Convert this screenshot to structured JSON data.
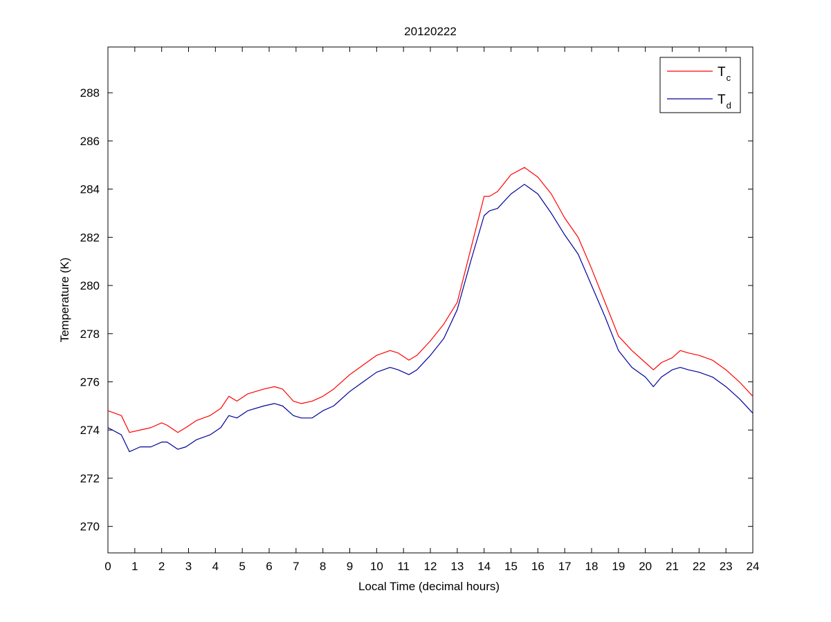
{
  "chart_data": {
    "type": "line",
    "title": "20120222",
    "xlabel": "Local Time (decimal hours)",
    "ylabel": "Temperature (K)",
    "xlim": [
      0,
      24
    ],
    "ylim": [
      268.9,
      289.9
    ],
    "xticks": [
      0,
      1,
      2,
      3,
      4,
      5,
      6,
      7,
      8,
      9,
      10,
      11,
      12,
      13,
      14,
      15,
      16,
      17,
      18,
      19,
      20,
      21,
      22,
      23,
      24
    ],
    "yticks": [
      270,
      272,
      274,
      276,
      278,
      280,
      282,
      284,
      286,
      288
    ],
    "grid": false,
    "legend_position": "top-right",
    "series": [
      {
        "name": "T",
        "subscript": "c",
        "color": "#ff0000",
        "x": [
          0,
          0.5,
          0.8,
          1.2,
          1.6,
          2.0,
          2.2,
          2.6,
          2.9,
          3.3,
          3.8,
          4.2,
          4.5,
          4.8,
          5.2,
          5.8,
          6.2,
          6.5,
          6.9,
          7.2,
          7.6,
          8.0,
          8.4,
          9.0,
          9.5,
          10.0,
          10.5,
          10.8,
          11.2,
          11.5,
          12.0,
          12.5,
          13.0,
          13.5,
          14.0,
          14.2,
          14.5,
          15.0,
          15.5,
          16.0,
          16.5,
          17.0,
          17.5,
          18.0,
          18.5,
          19.0,
          19.5,
          20.0,
          20.3,
          20.6,
          21.0,
          21.3,
          21.6,
          22.0,
          22.5,
          23.0,
          23.5,
          24.0
        ],
        "y": [
          274.8,
          274.6,
          273.9,
          274.0,
          274.1,
          274.3,
          274.2,
          273.9,
          274.1,
          274.4,
          274.6,
          274.9,
          275.4,
          275.2,
          275.5,
          275.7,
          275.8,
          275.7,
          275.2,
          275.1,
          275.2,
          275.4,
          275.7,
          276.3,
          276.7,
          277.1,
          277.3,
          277.2,
          276.9,
          277.1,
          277.7,
          278.4,
          279.3,
          281.5,
          283.7,
          283.7,
          283.9,
          284.6,
          284.9,
          284.5,
          283.8,
          282.8,
          282.0,
          280.7,
          279.3,
          277.9,
          277.3,
          276.8,
          276.5,
          276.8,
          277.0,
          277.3,
          277.2,
          277.1,
          276.9,
          276.5,
          276.0,
          275.4
        ]
      },
      {
        "name": "T",
        "subscript": "d",
        "color": "#000099",
        "x": [
          0,
          0.5,
          0.8,
          1.2,
          1.6,
          2.0,
          2.2,
          2.6,
          2.9,
          3.3,
          3.8,
          4.2,
          4.5,
          4.8,
          5.2,
          5.8,
          6.2,
          6.5,
          6.9,
          7.2,
          7.6,
          8.0,
          8.4,
          9.0,
          9.5,
          10.0,
          10.5,
          10.8,
          11.2,
          11.5,
          12.0,
          12.5,
          13.0,
          13.5,
          14.0,
          14.2,
          14.5,
          15.0,
          15.5,
          16.0,
          16.5,
          17.0,
          17.5,
          18.0,
          18.5,
          19.0,
          19.5,
          20.0,
          20.3,
          20.6,
          21.0,
          21.3,
          21.6,
          22.0,
          22.5,
          23.0,
          23.5,
          24.0
        ],
        "y": [
          274.1,
          273.8,
          273.1,
          273.3,
          273.3,
          273.5,
          273.5,
          273.2,
          273.3,
          273.6,
          273.8,
          274.1,
          274.6,
          274.5,
          274.8,
          275.0,
          275.1,
          275.0,
          274.6,
          274.5,
          274.5,
          274.8,
          275.0,
          275.6,
          276.0,
          276.4,
          276.6,
          276.5,
          276.3,
          276.5,
          277.1,
          277.8,
          279.0,
          281.0,
          282.9,
          283.1,
          283.2,
          283.8,
          284.2,
          283.8,
          283.0,
          282.1,
          281.3,
          280.0,
          278.7,
          277.3,
          276.6,
          276.2,
          275.8,
          276.2,
          276.5,
          276.6,
          276.5,
          276.4,
          276.2,
          275.8,
          275.3,
          274.7
        ]
      }
    ]
  }
}
